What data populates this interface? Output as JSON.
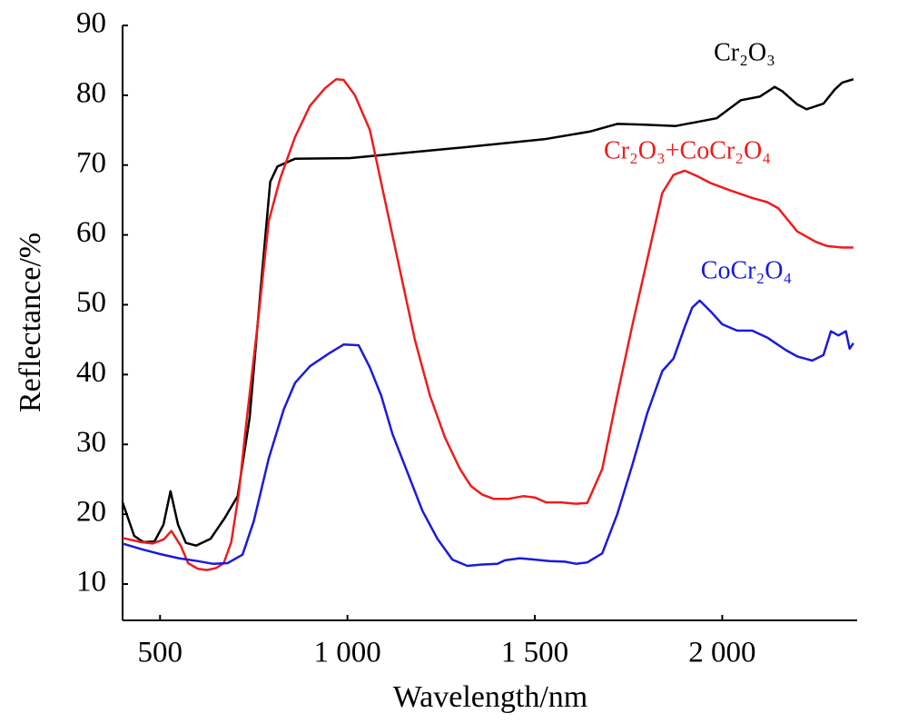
{
  "chart_data": {
    "type": "line",
    "xlabel": "Wavelength/nm",
    "ylabel": "Reflectance/%",
    "xlim": [
      400,
      2360
    ],
    "ylim": [
      4.8,
      90
    ],
    "xticks": [
      500,
      {
        "value": 1000,
        "label": "1 000"
      },
      {
        "value": 1500,
        "label": "1 500"
      },
      {
        "value": 2000,
        "label": "2 000"
      }
    ],
    "yticks": [
      10,
      20,
      30,
      40,
      50,
      60,
      70,
      80,
      90
    ],
    "series": [
      {
        "name": "Cr₂O₃",
        "color": "#000000",
        "x": [
          400,
          431,
          456,
          485,
          509,
          528,
          548,
          569,
          596,
          635,
          673,
          707,
          739,
          768,
          794,
          813,
          860,
          1005,
          1283,
          1525,
          1646,
          1720,
          1791,
          1876,
          1985,
          2050,
          2100,
          2140,
          2160,
          2200,
          2225,
          2270,
          2300,
          2320,
          2350
        ],
        "values": [
          21.7,
          16.9,
          16.0,
          16.1,
          18.5,
          23.3,
          18.5,
          15.9,
          15.5,
          16.5,
          19.5,
          22.6,
          33.8,
          52,
          67.6,
          69.8,
          70.9,
          71.0,
          72.4,
          73.7,
          74.8,
          75.9,
          75.8,
          75.6,
          76.7,
          79.3,
          79.8,
          81.2,
          80.6,
          78.7,
          78.0,
          78.8,
          80.8,
          81.8,
          82.3
        ]
      },
      {
        "name": "Cr₂O₃+CoCr₂O₄",
        "color": "#ee1c1c",
        "x": [
          400,
          450,
          480,
          510,
          530,
          555,
          575,
          600,
          625,
          650,
          670,
          690,
          710,
          730,
          760,
          790,
          820,
          860,
          900,
          940,
          970,
          990,
          1020,
          1060,
          1100,
          1140,
          1180,
          1220,
          1260,
          1300,
          1330,
          1360,
          1390,
          1430,
          1470,
          1500,
          1530,
          1570,
          1610,
          1640,
          1680,
          1720,
          1760,
          1800,
          1840,
          1870,
          1900,
          1930,
          1970,
          2020,
          2080,
          2120,
          2150,
          2200,
          2250,
          2280,
          2320,
          2350
        ],
        "values": [
          16.6,
          16.0,
          15.8,
          16.4,
          17.6,
          15.5,
          13.0,
          12.2,
          12.0,
          12.3,
          13.0,
          16,
          23,
          33,
          47,
          62,
          68,
          74,
          78.5,
          81,
          82.3,
          82.2,
          80,
          75,
          65,
          55,
          45,
          37,
          31,
          26.5,
          24,
          22.8,
          22.2,
          22.2,
          22.6,
          22.4,
          21.7,
          21.7,
          21.5,
          21.6,
          26.5,
          37,
          47,
          56.5,
          66,
          68.6,
          69.2,
          68.5,
          67.4,
          66.4,
          65.3,
          64.7,
          63.8,
          60.5,
          59,
          58.4,
          58.2,
          58.2
        ]
      },
      {
        "name": "CoCr₂O₄",
        "color": "#1a1adf",
        "x": [
          400,
          450,
          500,
          550,
          600,
          640,
          680,
          720,
          750,
          790,
          830,
          860,
          900,
          950,
          990,
          1030,
          1060,
          1090,
          1120,
          1160,
          1200,
          1240,
          1280,
          1320,
          1360,
          1400,
          1420,
          1460,
          1500,
          1540,
          1580,
          1610,
          1640,
          1680,
          1720,
          1760,
          1800,
          1840,
          1870,
          1900,
          1920,
          1940,
          1970,
          2000,
          2040,
          2080,
          2120,
          2170,
          2200,
          2240,
          2270,
          2290,
          2310,
          2330,
          2340,
          2350
        ],
        "values": [
          15.8,
          15.0,
          14.3,
          13.7,
          13.3,
          12.9,
          13.0,
          14.2,
          19,
          28,
          35,
          38.8,
          41.2,
          43,
          44.3,
          44.2,
          41,
          37,
          31.5,
          26,
          20.5,
          16.5,
          13.5,
          12.6,
          12.8,
          12.9,
          13.4,
          13.7,
          13.5,
          13.3,
          13.2,
          12.9,
          13.1,
          14.4,
          20,
          27,
          34.5,
          40.5,
          42.3,
          46.8,
          49.6,
          50.6,
          49,
          47.2,
          46.3,
          46.3,
          45.3,
          43.5,
          42.6,
          42,
          42.8,
          46.2,
          45.6,
          46.2,
          43.7,
          44.5
        ]
      }
    ]
  }
}
